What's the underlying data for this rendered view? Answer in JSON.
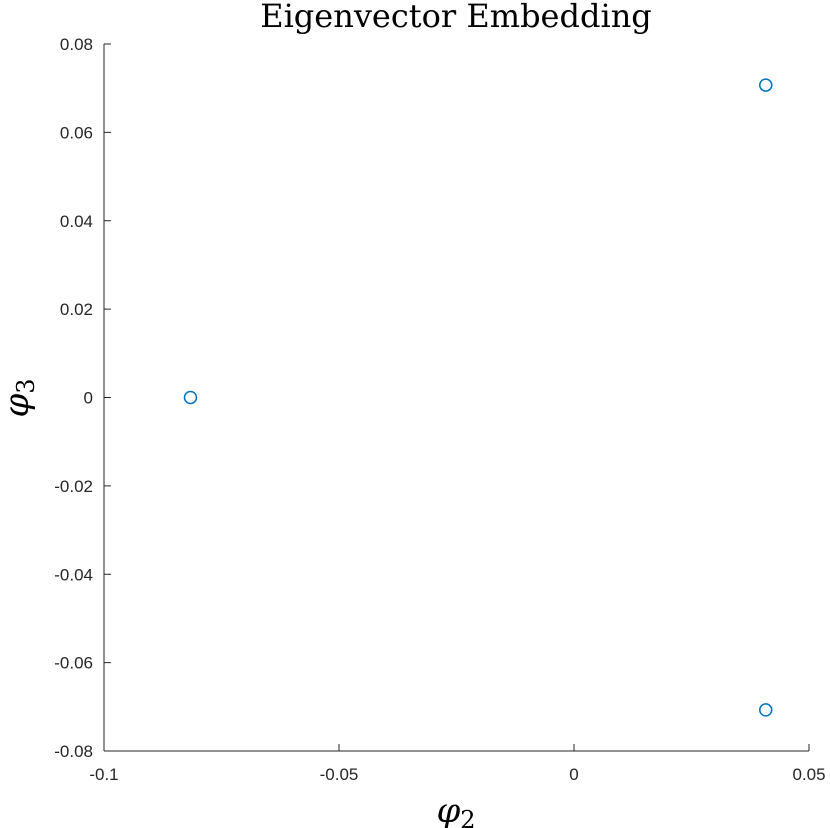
{
  "chart_data": {
    "type": "scatter",
    "title": "Eigenvector Embedding",
    "xlabel": {
      "symbol": "φ",
      "subscript": "2"
    },
    "ylabel": {
      "symbol": "φ",
      "subscript": "3"
    },
    "xlim": [
      -0.1,
      0.05
    ],
    "ylim": [
      -0.08,
      0.08
    ],
    "xticks": [
      -0.1,
      -0.05,
      0,
      0.05
    ],
    "xtick_labels": [
      "-0.1",
      "-0.05",
      "0",
      "0.05"
    ],
    "yticks": [
      -0.08,
      -0.06,
      -0.04,
      -0.02,
      0,
      0.02,
      0.04,
      0.06,
      0.08
    ],
    "ytick_labels": [
      "-0.08",
      "-0.06",
      "-0.04",
      "-0.02",
      "0",
      "0.02",
      "0.04",
      "0.06",
      "0.08"
    ],
    "grid": false,
    "marker": "open-circle",
    "series": [
      {
        "color": "#0072BD",
        "points": [
          {
            "x": -0.0816,
            "y": 0.0
          },
          {
            "x": 0.0408,
            "y": 0.0707
          },
          {
            "x": 0.0408,
            "y": -0.0707
          }
        ]
      }
    ]
  }
}
